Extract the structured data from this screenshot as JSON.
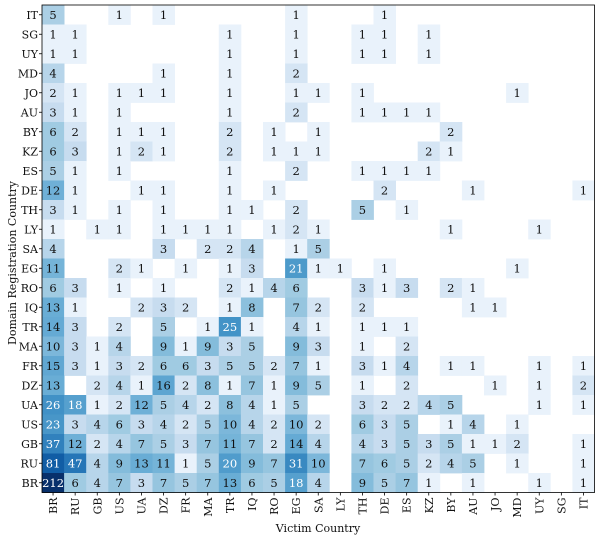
{
  "chart_data": {
    "type": "heatmap",
    "title": "",
    "xlabel": "Victim Country",
    "ylabel": "Domain Registration Country",
    "x_categories": [
      "BR",
      "RU",
      "GB",
      "US",
      "UA",
      "DZ",
      "FR",
      "MA",
      "TR",
      "IQ",
      "RO",
      "EG",
      "SA",
      "LY",
      "TH",
      "DE",
      "ES",
      "KZ",
      "BY",
      "AU",
      "JO",
      "MD",
      "UY",
      "SG",
      "IT"
    ],
    "y_categories": [
      "IT",
      "SG",
      "UY",
      "MD",
      "JO",
      "AU",
      "BY",
      "KZ",
      "ES",
      "DE",
      "TH",
      "LY",
      "SA",
      "EG",
      "RO",
      "IQ",
      "TR",
      "MA",
      "FR",
      "DZ",
      "UA",
      "US",
      "GB",
      "RU",
      "BR"
    ],
    "colormap": "Blues",
    "color_min": "#f7fbff",
    "color_max": "#08306b",
    "rows": [
      {
        "y": "IT",
        "cells": {
          "BR": 5,
          "US": 1,
          "DZ": 1,
          "EG": 1,
          "DE": 1
        }
      },
      {
        "y": "SG",
        "cells": {
          "BR": 1,
          "RU": 1,
          "TR": 1,
          "EG": 1,
          "TH": 1,
          "DE": 1,
          "KZ": 1
        }
      },
      {
        "y": "UY",
        "cells": {
          "BR": 1,
          "RU": 1,
          "TR": 1,
          "EG": 1,
          "TH": 1,
          "DE": 1,
          "KZ": 1
        }
      },
      {
        "y": "MD",
        "cells": {
          "BR": 4,
          "DZ": 1,
          "TR": 1,
          "EG": 2
        }
      },
      {
        "y": "JO",
        "cells": {
          "BR": 2,
          "RU": 1,
          "US": 1,
          "UA": 1,
          "DZ": 1,
          "TR": 1,
          "EG": 1,
          "SA": 1,
          "TH": 1,
          "MD": 1
        }
      },
      {
        "y": "AU",
        "cells": {
          "BR": 3,
          "RU": 1,
          "US": 1,
          "TR": 1,
          "EG": 2,
          "TH": 1,
          "DE": 1,
          "ES": 1,
          "KZ": 1
        }
      },
      {
        "y": "BY",
        "cells": {
          "BR": 6,
          "RU": 2,
          "US": 1,
          "UA": 1,
          "DZ": 1,
          "TR": 2,
          "RO": 1,
          "SA": 1,
          "BY": 2
        }
      },
      {
        "y": "KZ",
        "cells": {
          "BR": 6,
          "RU": 3,
          "US": 1,
          "UA": 2,
          "DZ": 1,
          "TR": 2,
          "RO": 1,
          "EG": 1,
          "SA": 1,
          "KZ": 2,
          "BY": 1
        }
      },
      {
        "y": "ES",
        "cells": {
          "BR": 5,
          "RU": 1,
          "US": 1,
          "TR": 1,
          "EG": 2,
          "TH": 1,
          "DE": 1,
          "ES": 1,
          "KZ": 1
        }
      },
      {
        "y": "DE",
        "cells": {
          "BR": 12,
          "RU": 1,
          "UA": 1,
          "DZ": 1,
          "TR": 1,
          "RO": 1,
          "DE": 2,
          "AU": 1,
          "IT": 1
        }
      },
      {
        "y": "TH",
        "cells": {
          "BR": 3,
          "RU": 1,
          "US": 1,
          "DZ": 1,
          "TR": 1,
          "IQ": 1,
          "EG": 2,
          "TH": 5,
          "ES": 1
        }
      },
      {
        "y": "LY",
        "cells": {
          "BR": 1,
          "GB": 1,
          "US": 1,
          "DZ": 1,
          "FR": 1,
          "MA": 1,
          "TR": 1,
          "RO": 1,
          "EG": 2,
          "SA": 1,
          "BY": 1,
          "UY": 1
        }
      },
      {
        "y": "SA",
        "cells": {
          "BR": 4,
          "DZ": 3,
          "MA": 2,
          "TR": 2,
          "IQ": 4,
          "EG": 1,
          "SA": 5
        }
      },
      {
        "y": "EG",
        "cells": {
          "BR": 11,
          "US": 2,
          "UA": 1,
          "FR": 1,
          "TR": 1,
          "IQ": 3,
          "EG": 21,
          "SA": 1,
          "LY": 1,
          "DE": 1,
          "MD": 1
        }
      },
      {
        "y": "RO",
        "cells": {
          "BR": 6,
          "RU": 3,
          "US": 1,
          "DZ": 1,
          "TR": 2,
          "IQ": 1,
          "RO": 4,
          "EG": 6,
          "TH": 3,
          "DE": 1,
          "ES": 3,
          "BY": 2,
          "AU": 1
        }
      },
      {
        "y": "IQ",
        "cells": {
          "BR": 13,
          "RU": 1,
          "UA": 2,
          "DZ": 3,
          "FR": 2,
          "TR": 1,
          "IQ": 8,
          "EG": 7,
          "SA": 2,
          "TH": 2,
          "AU": 1,
          "JO": 1
        }
      },
      {
        "y": "TR",
        "cells": {
          "BR": 14,
          "RU": 3,
          "US": 2,
          "DZ": 5,
          "MA": 1,
          "TR": 25,
          "IQ": 1,
          "EG": 4,
          "SA": 1,
          "TH": 1,
          "DE": 1,
          "ES": 1
        }
      },
      {
        "y": "MA",
        "cells": {
          "BR": 10,
          "RU": 3,
          "GB": 1,
          "US": 4,
          "DZ": 9,
          "FR": 1,
          "MA": 9,
          "TR": 3,
          "IQ": 5,
          "EG": 9,
          "SA": 3,
          "TH": 1,
          "ES": 2
        }
      },
      {
        "y": "FR",
        "cells": {
          "BR": 15,
          "RU": 3,
          "GB": 1,
          "US": 3,
          "UA": 2,
          "DZ": 6,
          "FR": 6,
          "MA": 3,
          "TR": 5,
          "IQ": 5,
          "RO": 2,
          "EG": 7,
          "SA": 1,
          "TH": 3,
          "DE": 1,
          "ES": 4,
          "BY": 1,
          "AU": 1,
          "UY": 1,
          "IT": 1
        }
      },
      {
        "y": "DZ",
        "cells": {
          "BR": 13,
          "GB": 2,
          "US": 4,
          "UA": 1,
          "DZ": 16,
          "FR": 2,
          "MA": 8,
          "TR": 1,
          "IQ": 7,
          "RO": 1,
          "EG": 9,
          "SA": 5,
          "TH": 1,
          "ES": 2,
          "JO": 1,
          "UY": 1,
          "IT": 2
        }
      },
      {
        "y": "UA",
        "cells": {
          "BR": 26,
          "RU": 18,
          "GB": 1,
          "US": 2,
          "UA": 12,
          "DZ": 5,
          "FR": 4,
          "MA": 2,
          "TR": 8,
          "IQ": 4,
          "RO": 1,
          "EG": 5,
          "TH": 3,
          "DE": 2,
          "ES": 2,
          "KZ": 4,
          "BY": 5,
          "UY": 1,
          "IT": 1
        }
      },
      {
        "y": "US",
        "cells": {
          "BR": 23,
          "RU": 3,
          "GB": 4,
          "US": 6,
          "UA": 3,
          "DZ": 4,
          "FR": 2,
          "MA": 5,
          "TR": 10,
          "IQ": 4,
          "RO": 2,
          "EG": 10,
          "SA": 2,
          "TH": 6,
          "DE": 3,
          "ES": 5,
          "BY": 1,
          "AU": 4,
          "MD": 1
        }
      },
      {
        "y": "GB",
        "cells": {
          "BR": 37,
          "RU": 12,
          "GB": 2,
          "US": 4,
          "UA": 7,
          "DZ": 5,
          "FR": 3,
          "MA": 7,
          "TR": 11,
          "IQ": 7,
          "RO": 2,
          "EG": 14,
          "SA": 4,
          "TH": 4,
          "DE": 3,
          "ES": 5,
          "KZ": 3,
          "BY": 5,
          "AU": 1,
          "JO": 1,
          "MD": 2,
          "IT": 1
        }
      },
      {
        "y": "RU",
        "cells": {
          "BR": 81,
          "RU": 47,
          "GB": 4,
          "US": 9,
          "UA": 13,
          "DZ": 11,
          "FR": 1,
          "MA": 5,
          "TR": 20,
          "IQ": 9,
          "RO": 7,
          "EG": 31,
          "SA": 10,
          "TH": 7,
          "DE": 6,
          "ES": 5,
          "KZ": 2,
          "BY": 4,
          "AU": 5,
          "MD": 1,
          "IT": 1
        }
      },
      {
        "y": "BR",
        "cells": {
          "BR": 212,
          "RU": 6,
          "GB": 4,
          "US": 7,
          "UA": 3,
          "DZ": 7,
          "FR": 5,
          "MA": 7,
          "TR": 13,
          "IQ": 6,
          "RO": 5,
          "EG": 18,
          "SA": 4,
          "TH": 9,
          "DE": 5,
          "ES": 7,
          "KZ": 1,
          "AU": 1,
          "UY": 1,
          "IT": 1
        }
      }
    ]
  }
}
